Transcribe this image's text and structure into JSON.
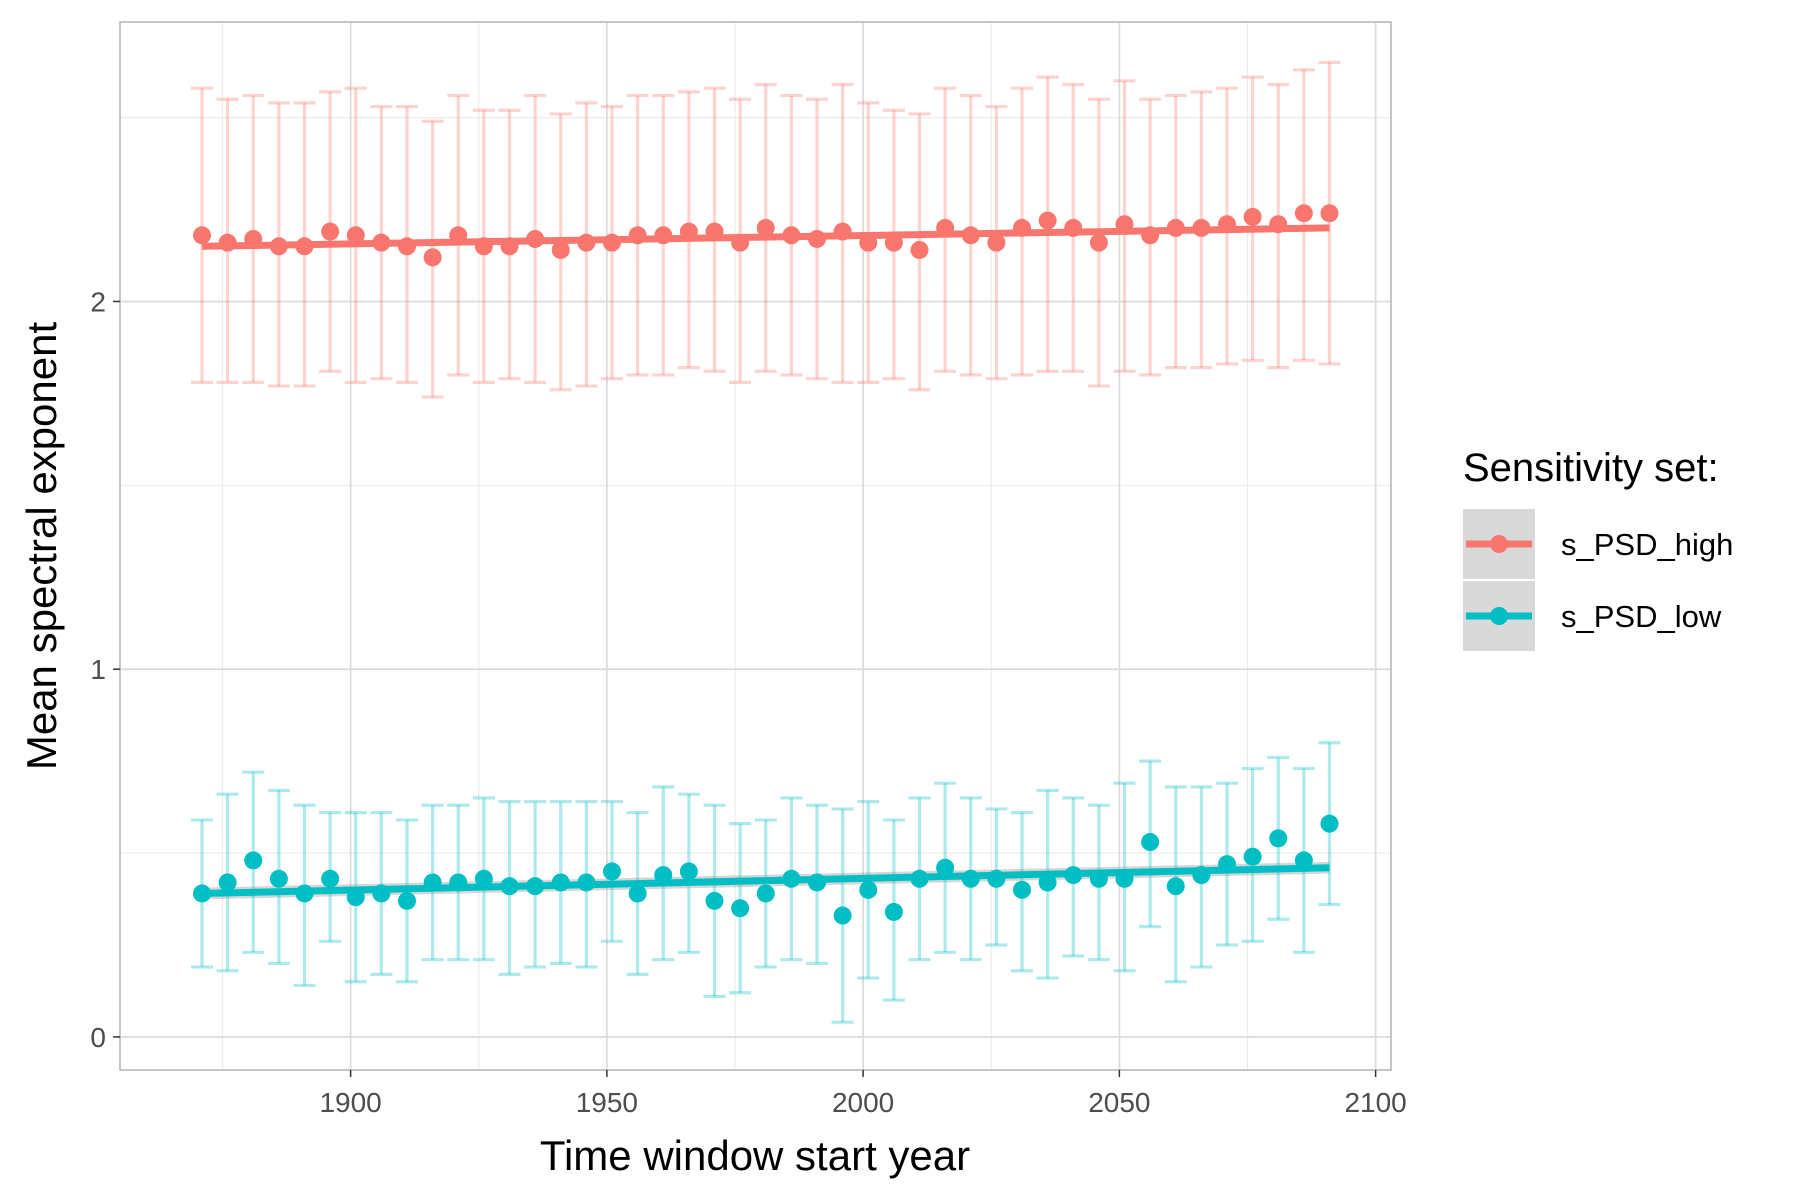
{
  "chart_data": {
    "type": "scatter",
    "xlabel": "Time window start year",
    "ylabel": "Mean spectral exponent",
    "xlim": [
      1855,
      2103
    ],
    "ylim": [
      -0.09,
      2.76
    ],
    "x_ticks": [
      1900,
      1950,
      2000,
      2050,
      2100
    ],
    "x_tick_labels": [
      "1900",
      "1950",
      "2000",
      "2050",
      "2100"
    ],
    "y_ticks": [
      0,
      1,
      2
    ],
    "y_tick_labels": [
      "0",
      "1",
      "2"
    ],
    "grid": true,
    "legend": {
      "title": "Sensitivity set:",
      "position": "right",
      "entries": [
        "s_PSD_high",
        "s_PSD_low"
      ]
    },
    "x": [
      1871,
      1876,
      1881,
      1886,
      1891,
      1896,
      1901,
      1906,
      1911,
      1916,
      1921,
      1926,
      1931,
      1936,
      1941,
      1946,
      1951,
      1956,
      1961,
      1966,
      1971,
      1976,
      1981,
      1986,
      1991,
      1996,
      2001,
      2006,
      2011,
      2016,
      2021,
      2026,
      2031,
      2036,
      2041,
      2046,
      2051,
      2056,
      2061,
      2066,
      2071,
      2076,
      2081,
      2086,
      2091
    ],
    "series": [
      {
        "name": "s_PSD_high",
        "color": "#F8766D",
        "values": [
          2.18,
          2.16,
          2.17,
          2.15,
          2.15,
          2.19,
          2.18,
          2.16,
          2.15,
          2.12,
          2.18,
          2.15,
          2.15,
          2.17,
          2.14,
          2.16,
          2.16,
          2.18,
          2.18,
          2.19,
          2.19,
          2.16,
          2.2,
          2.18,
          2.17,
          2.19,
          2.16,
          2.16,
          2.14,
          2.2,
          2.18,
          2.16,
          2.2,
          2.22,
          2.2,
          2.16,
          2.21,
          2.18,
          2.2,
          2.2,
          2.21,
          2.23,
          2.21,
          2.24,
          2.24
        ],
        "err_low": [
          1.78,
          1.78,
          1.78,
          1.77,
          1.77,
          1.81,
          1.78,
          1.79,
          1.78,
          1.74,
          1.8,
          1.78,
          1.79,
          1.78,
          1.76,
          1.77,
          1.79,
          1.8,
          1.8,
          1.82,
          1.81,
          1.78,
          1.81,
          1.8,
          1.79,
          1.78,
          1.78,
          1.79,
          1.76,
          1.81,
          1.8,
          1.79,
          1.8,
          1.81,
          1.81,
          1.77,
          1.81,
          1.8,
          1.82,
          1.82,
          1.83,
          1.84,
          1.82,
          1.84,
          1.83
        ],
        "err_high": [
          2.58,
          2.55,
          2.56,
          2.54,
          2.54,
          2.57,
          2.58,
          2.53,
          2.53,
          2.49,
          2.56,
          2.52,
          2.52,
          2.56,
          2.51,
          2.54,
          2.53,
          2.56,
          2.56,
          2.57,
          2.58,
          2.55,
          2.59,
          2.56,
          2.55,
          2.59,
          2.54,
          2.52,
          2.51,
          2.58,
          2.56,
          2.53,
          2.58,
          2.61,
          2.59,
          2.55,
          2.6,
          2.55,
          2.56,
          2.57,
          2.58,
          2.61,
          2.59,
          2.63,
          2.65
        ],
        "trend": [
          2.15,
          2.2
        ]
      },
      {
        "name": "s_PSD_low",
        "color": "#00BFC4",
        "values": [
          0.39,
          0.42,
          0.48,
          0.43,
          0.39,
          0.43,
          0.38,
          0.39,
          0.37,
          0.42,
          0.42,
          0.43,
          0.41,
          0.41,
          0.42,
          0.42,
          0.45,
          0.39,
          0.44,
          0.45,
          0.37,
          0.35,
          0.39,
          0.43,
          0.42,
          0.33,
          0.4,
          0.34,
          0.43,
          0.46,
          0.43,
          0.43,
          0.4,
          0.42,
          0.44,
          0.43,
          0.43,
          0.53,
          0.41,
          0.44,
          0.47,
          0.49,
          0.54,
          0.48,
          0.58
        ],
        "err_low": [
          0.19,
          0.18,
          0.23,
          0.2,
          0.14,
          0.26,
          0.15,
          0.17,
          0.15,
          0.21,
          0.21,
          0.21,
          0.17,
          0.19,
          0.2,
          0.19,
          0.26,
          0.17,
          0.21,
          0.23,
          0.11,
          0.12,
          0.19,
          0.21,
          0.2,
          0.04,
          0.16,
          0.1,
          0.21,
          0.23,
          0.21,
          0.25,
          0.18,
          0.16,
          0.22,
          0.21,
          0.18,
          0.3,
          0.15,
          0.19,
          0.25,
          0.26,
          0.32,
          0.23,
          0.36
        ],
        "err_high": [
          0.59,
          0.66,
          0.72,
          0.67,
          0.63,
          0.61,
          0.61,
          0.61,
          0.59,
          0.63,
          0.63,
          0.65,
          0.64,
          0.64,
          0.64,
          0.64,
          0.64,
          0.61,
          0.68,
          0.66,
          0.63,
          0.58,
          0.59,
          0.65,
          0.63,
          0.62,
          0.64,
          0.59,
          0.65,
          0.69,
          0.65,
          0.62,
          0.61,
          0.67,
          0.65,
          0.63,
          0.69,
          0.75,
          0.68,
          0.68,
          0.69,
          0.73,
          0.76,
          0.73,
          0.8
        ],
        "trend": [
          0.39,
          0.46
        ]
      }
    ]
  }
}
